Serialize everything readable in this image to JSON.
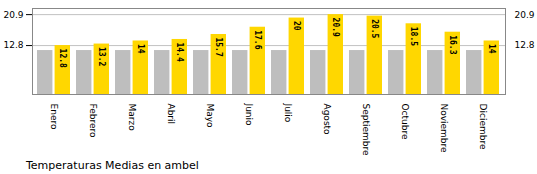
{
  "chart_data": {
    "type": "bar",
    "title": "Temperaturas Medias en ambel",
    "categories": [
      "Enero",
      "Febrero",
      "Marzo",
      "Abril",
      "Mayo",
      "Junio",
      "Julio",
      "Agosto",
      "Septiembre",
      "Octubre",
      "Noviembre",
      "Diciembre"
    ],
    "series": [
      {
        "color": "#BEBEBE",
        "values": [
          11.5,
          11.5,
          11.5,
          11.5,
          11.5,
          11.5,
          11.5,
          11.5,
          11.5,
          11.5,
          11.5,
          11.5
        ]
      },
      {
        "color": "#FFD700",
        "values": [
          12.8,
          13.2,
          14.0,
          14.4,
          15.7,
          17.6,
          20.0,
          20.9,
          20.5,
          18.5,
          16.3,
          14.0
        ],
        "data_labels": true
      }
    ],
    "ylim": [
      0,
      22.5
    ],
    "yticks": [
      12.8,
      20.9
    ],
    "y2lim": [
      0,
      22.5
    ],
    "y2ticks": [
      12.8,
      20.9
    ],
    "grid": true
  }
}
